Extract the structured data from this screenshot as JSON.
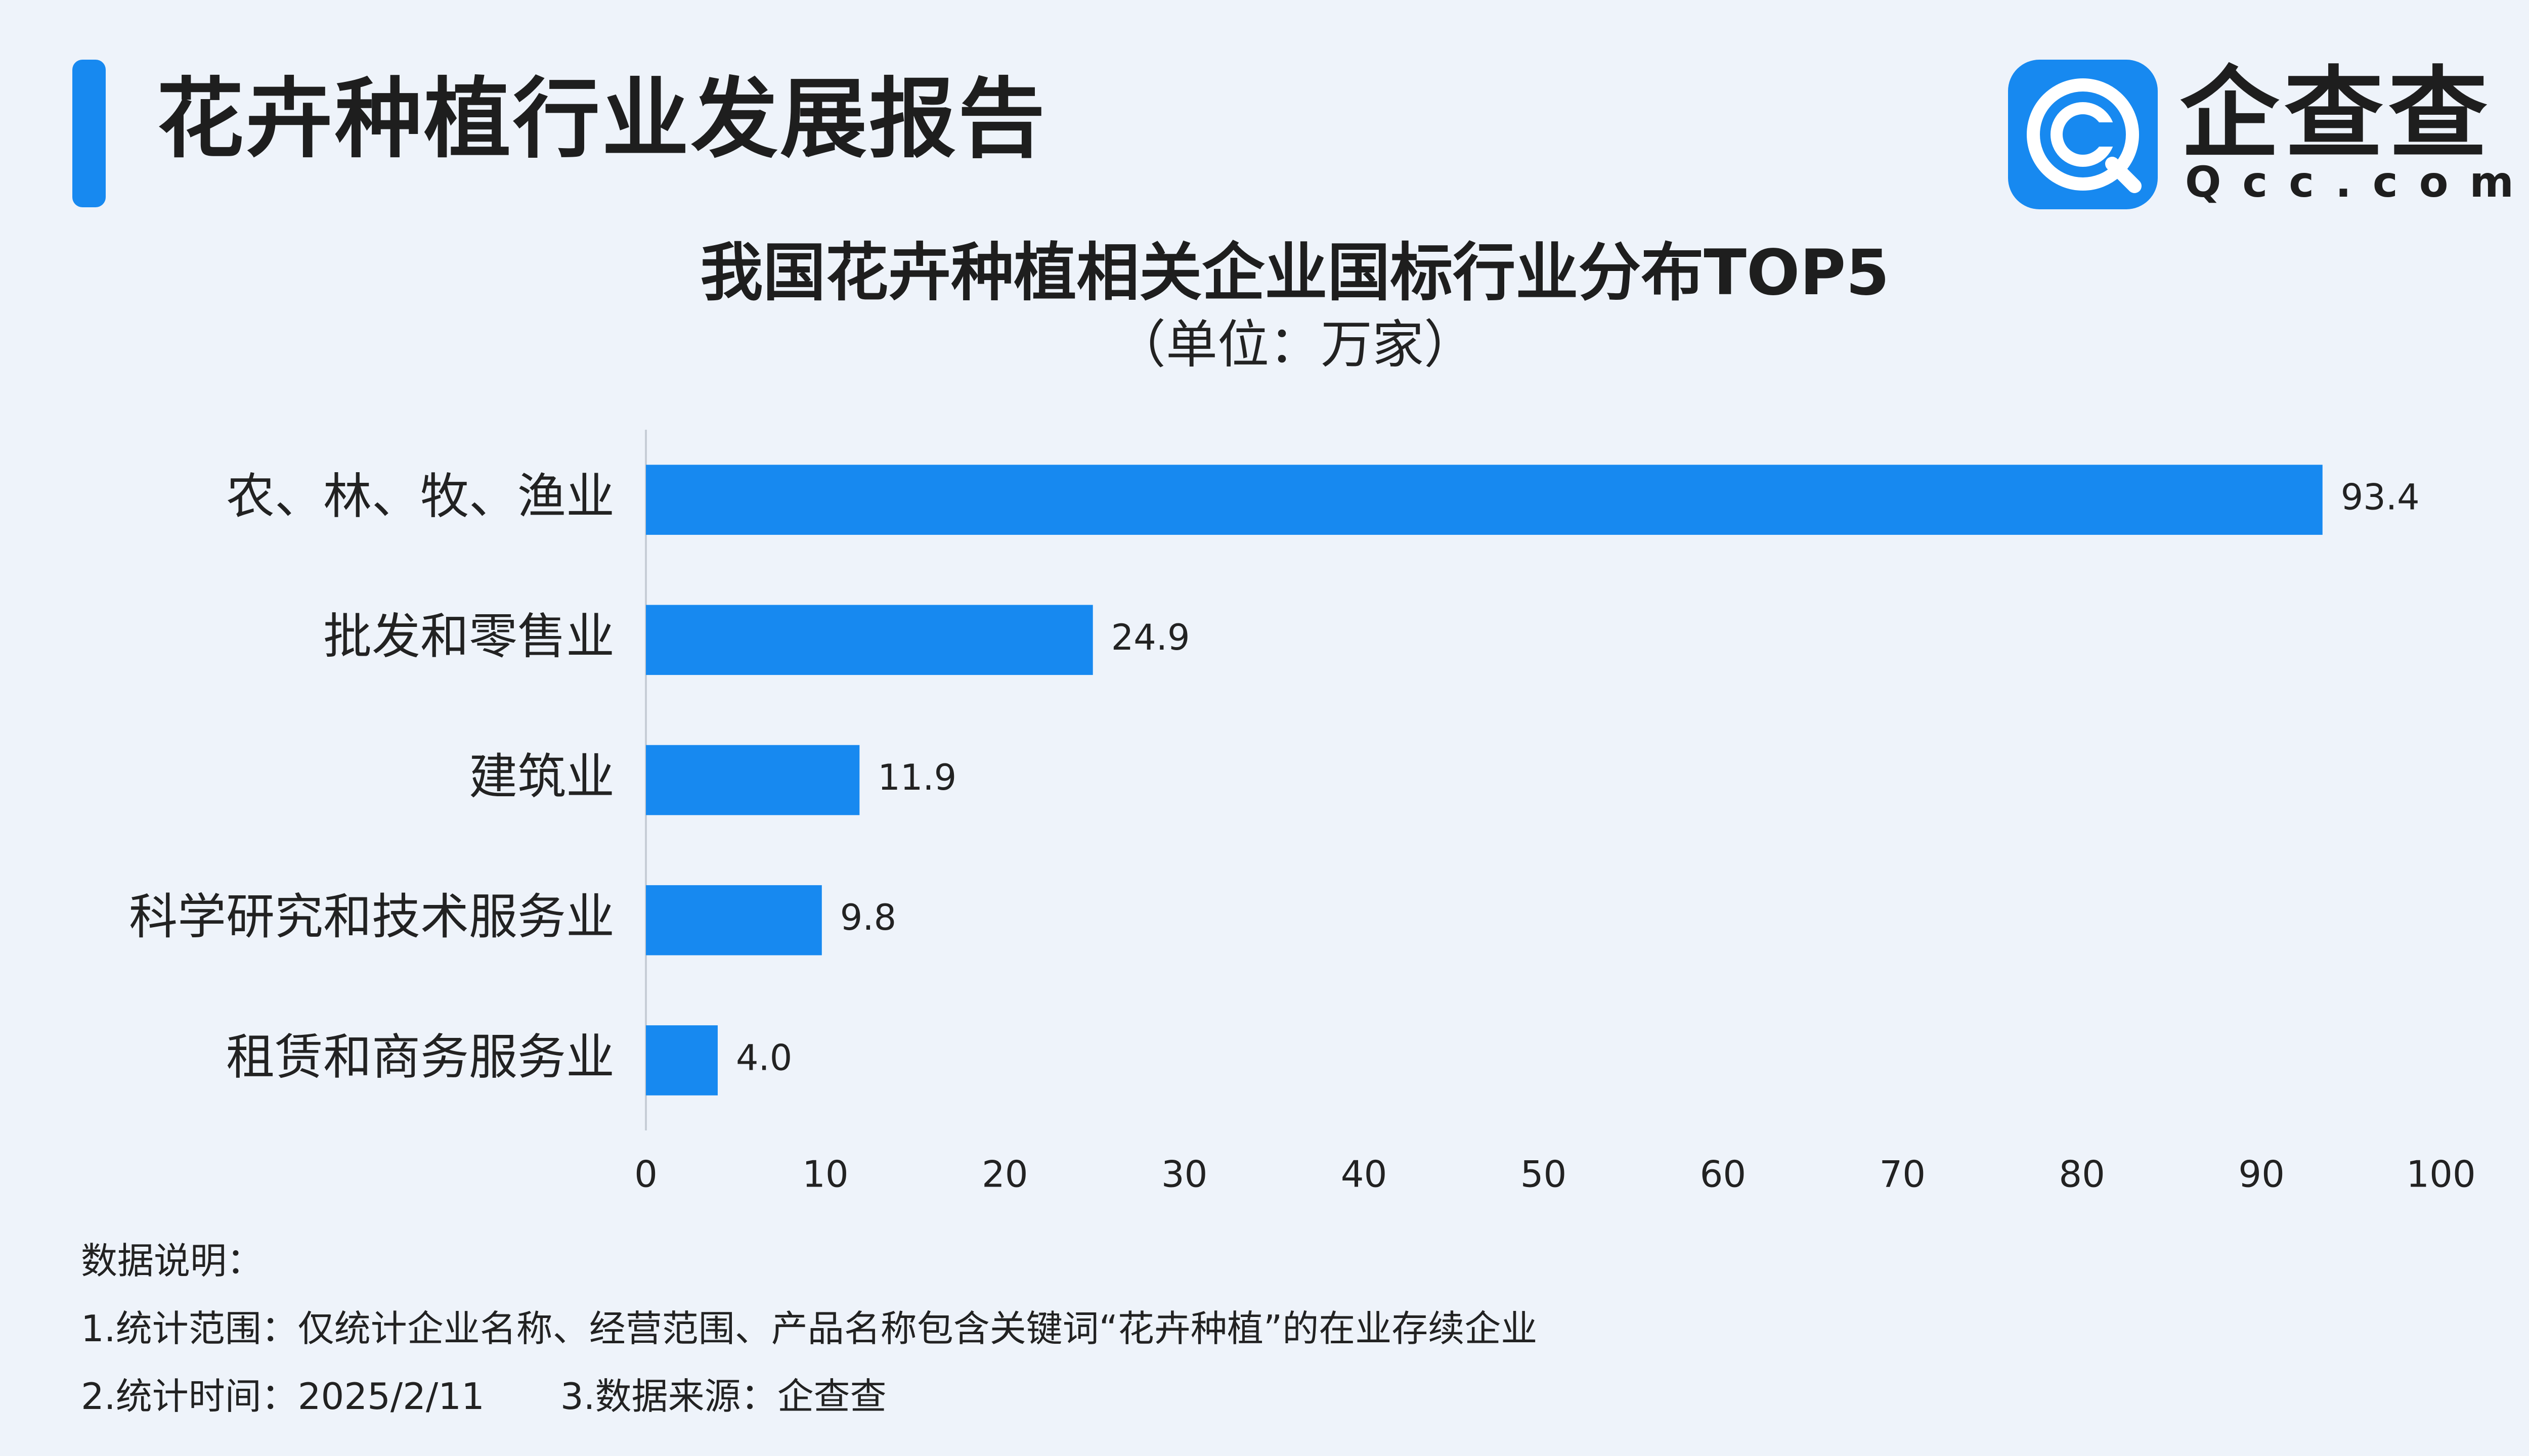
{
  "header": {
    "title": "花卉种植行业发展报告",
    "logo_cn": "企查查",
    "logo_en": "Qcc.com"
  },
  "colors": {
    "accent": "#1789f0",
    "bar": "#1789f0",
    "background": "#eef3fa"
  },
  "chart_data": {
    "type": "bar",
    "orientation": "horizontal",
    "title": "我国花卉种植相关企业国标行业分布TOP5",
    "subtitle": "（单位：万家）",
    "categories": [
      "农、林、牧、渔业",
      "批发和零售业",
      "建筑业",
      "科学研究和技术服务业",
      "租赁和商务服务业"
    ],
    "values": [
      93.4,
      24.9,
      11.9,
      9.8,
      4.0
    ],
    "value_labels": [
      "93.4",
      "24.9",
      "11.9",
      "9.8",
      "4.0"
    ],
    "xlim": [
      0,
      100
    ],
    "xticks": [
      "0",
      "10",
      "20",
      "30",
      "40",
      "50",
      "60",
      "70",
      "80",
      "90",
      "100"
    ],
    "grid": false,
    "legend": "none"
  },
  "notes": {
    "heading": "数据说明：",
    "line1": "1.统计范围：仅统计企业名称、经营范围、产品名称包含关键词“花卉种植”的在业存续企业",
    "line2a": "2.统计时间：2025/2/11",
    "line2b": "3.数据来源：企查查"
  }
}
